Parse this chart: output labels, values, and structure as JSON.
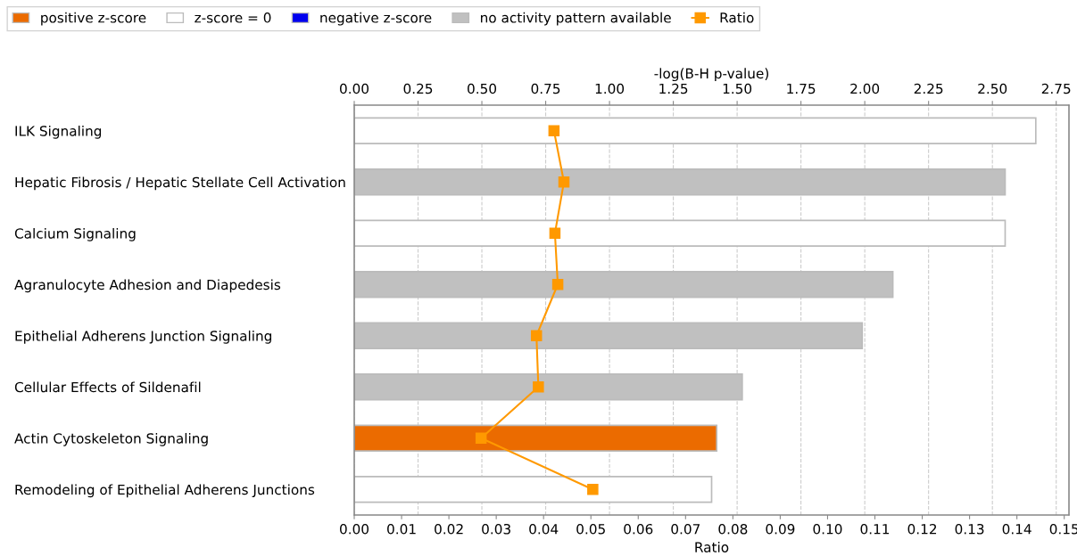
{
  "chart_data": {
    "type": "bar",
    "orientation": "horizontal",
    "categories": [
      "ILK Signaling",
      "Hepatic Fibrosis / Hepatic Stellate Cell Activation",
      "Calcium Signaling",
      "Agranulocyte Adhesion and Diapedesis",
      "Epithelial Adherens Junction Signaling",
      "Cellular Effects of Sildenafil",
      "Actin Cytoskeleton Signaling",
      "Remodeling of Epithelial Adherens Junctions"
    ],
    "series": [
      {
        "name": "positive z-score",
        "color": "#eb6b00",
        "axis": "x2",
        "values": [
          null,
          null,
          null,
          null,
          null,
          null,
          1.42,
          null
        ]
      },
      {
        "name": "z-score = 0",
        "color": "#ffffff",
        "axis": "x2",
        "values": [
          2.67,
          null,
          2.55,
          null,
          null,
          null,
          null,
          1.4
        ]
      },
      {
        "name": "negative z-score",
        "color": "#0000ee",
        "axis": "x2",
        "values": [
          null,
          null,
          null,
          null,
          null,
          null,
          null,
          null
        ]
      },
      {
        "name": "no activity pattern available",
        "color": "#c0c0c0",
        "axis": "x2",
        "values": [
          null,
          2.55,
          null,
          2.11,
          1.99,
          1.52,
          null,
          null
        ]
      },
      {
        "name": "Ratio",
        "type": "line",
        "color": "#ff9900",
        "marker": "square",
        "values": [
          0.0422,
          0.0443,
          0.0424,
          0.043,
          0.0385,
          0.0389,
          0.0268,
          0.0504
        ]
      }
    ],
    "x2label": "-log(B-H p-value)",
    "x2lim": [
      0,
      2.8
    ],
    "x2ticks": [
      {
        "value": 0,
        "label": "0.00"
      },
      {
        "value": 0.25,
        "label": "0.25"
      },
      {
        "value": 0.5,
        "label": "0.50"
      },
      {
        "value": 0.75,
        "label": "0.75"
      },
      {
        "value": 1,
        "label": "1.00"
      },
      {
        "value": 1.25,
        "label": "1.25"
      },
      {
        "value": 1.5,
        "label": "1.50"
      },
      {
        "value": 1.75,
        "label": "1.75"
      },
      {
        "value": 2,
        "label": "2.00"
      },
      {
        "value": 2.25,
        "label": "2.25"
      },
      {
        "value": 2.5,
        "label": "2.50"
      },
      {
        "value": 2.75,
        "label": "2.75"
      }
    ],
    "xlabel": "Ratio",
    "xlim": [
      0,
      0.151
    ],
    "xticks": [
      {
        "value": 0,
        "label": "0.00"
      },
      {
        "value": 0.01,
        "label": "0.01"
      },
      {
        "value": 0.02,
        "label": "0.02"
      },
      {
        "value": 0.03,
        "label": "0.03"
      },
      {
        "value": 0.04,
        "label": "0.04"
      },
      {
        "value": 0.05,
        "label": "0.05"
      },
      {
        "value": 0.06,
        "label": "0.06"
      },
      {
        "value": 0.07,
        "label": "0.07"
      },
      {
        "value": 0.08,
        "label": "0.08"
      },
      {
        "value": 0.09,
        "label": "0.09"
      },
      {
        "value": 0.1,
        "label": "0.10"
      },
      {
        "value": 0.11,
        "label": "0.11"
      },
      {
        "value": 0.12,
        "label": "0.12"
      },
      {
        "value": 0.13,
        "label": "0.13"
      },
      {
        "value": 0.14,
        "label": "0.14"
      },
      {
        "value": 0.15,
        "label": "0.15"
      }
    ],
    "grid": "x",
    "legend": "top"
  }
}
